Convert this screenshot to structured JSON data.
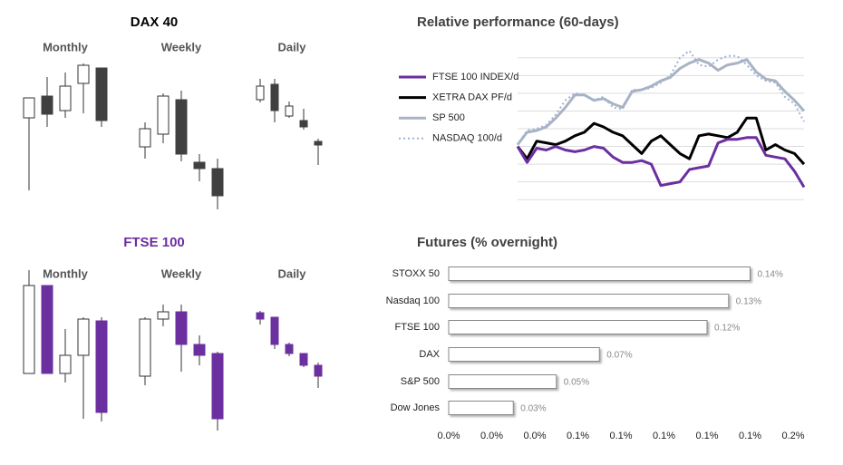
{
  "chart_data": [
    {
      "type": "candlestick",
      "title": "DAX 40",
      "color": "#404040",
      "ylim": [
        0,
        200
      ],
      "panels": [
        {
          "title": "Monthly",
          "open": [
            110,
            134,
            118,
            148,
            165
          ],
          "high": [
            132,
            155,
            160,
            170,
            165
          ],
          "low": [
            30,
            100,
            110,
            115,
            100
          ],
          "close": [
            132,
            114,
            145,
            168,
            107
          ]
        },
        {
          "title": "Weekly",
          "open": [
            78,
            92,
            130,
            61,
            54
          ],
          "high": [
            105,
            137,
            140,
            70,
            65
          ],
          "low": [
            65,
            82,
            62,
            40,
            9
          ],
          "close": [
            98,
            134,
            70,
            54,
            24
          ]
        },
        {
          "title": "Daily",
          "open": [
            130,
            147,
            112,
            107,
            84
          ],
          "high": [
            153,
            153,
            128,
            120,
            87
          ],
          "low": [
            127,
            105,
            110,
            97,
            58
          ],
          "close": [
            145,
            118,
            123,
            100,
            80
          ]
        }
      ]
    },
    {
      "type": "line",
      "title": "Relative performance (60-days)",
      "ylim": [
        -4.5,
        4.5
      ],
      "yticks": [
        -4,
        -3,
        -2,
        -1,
        0,
        1,
        2,
        3,
        4
      ],
      "grid": true,
      "series": [
        {
          "name": "FTSE 100 INDEX/d",
          "color": "#6b2fa0",
          "style": "solid",
          "values": [
            -1.0,
            -1.9,
            -1.1,
            -1.2,
            -1.0,
            -1.2,
            -1.3,
            -1.2,
            -1.0,
            -1.1,
            -1.6,
            -1.9,
            -1.9,
            -1.8,
            -2.0,
            -3.2,
            -3.1,
            -3.0,
            -2.3,
            -2.2,
            -2.1,
            -0.8,
            -0.6,
            -0.6,
            -0.5,
            -0.5,
            -1.5,
            -1.6,
            -1.7,
            -2.4,
            -3.3
          ]
        },
        {
          "name": "XETRA DAX PF/d",
          "color": "#000000",
          "style": "solid",
          "values": [
            -1.0,
            -1.7,
            -0.7,
            -0.8,
            -0.9,
            -0.7,
            -0.4,
            -0.2,
            0.3,
            0.1,
            -0.2,
            -0.4,
            -0.9,
            -1.4,
            -0.7,
            -0.4,
            -0.9,
            -1.4,
            -1.7,
            -0.4,
            -0.3,
            -0.4,
            -0.5,
            -0.2,
            0.6,
            0.6,
            -1.2,
            -0.9,
            -1.2,
            -1.4,
            -2.0
          ]
        },
        {
          "name": "SP 500",
          "color": "#a9b3c4",
          "style": "solid",
          "values": [
            -0.9,
            -0.2,
            -0.1,
            0.1,
            0.6,
            1.2,
            1.9,
            1.9,
            1.6,
            1.7,
            1.4,
            1.2,
            2.1,
            2.2,
            2.4,
            2.7,
            2.9,
            3.4,
            3.7,
            3.9,
            3.7,
            3.3,
            3.6,
            3.7,
            3.9,
            3.2,
            2.8,
            2.7,
            2.1,
            1.6,
            1.0
          ]
        },
        {
          "name": "NASDAQ 100/d",
          "color": "#9db3d6",
          "style": "dotted",
          "values": [
            -0.9,
            -0.1,
            0.0,
            0.2,
            0.8,
            1.6,
            2.0,
            1.9,
            1.6,
            1.8,
            1.2,
            1.1,
            2.2,
            2.2,
            2.3,
            2.6,
            3.0,
            4.0,
            4.4,
            3.6,
            3.5,
            3.9,
            4.1,
            4.1,
            3.6,
            3.0,
            2.7,
            2.6,
            1.8,
            1.4,
            0.4
          ]
        }
      ]
    },
    {
      "type": "candlestick",
      "title": "FTSE 100",
      "color": "#6b2fa0",
      "ylim": [
        0,
        190
      ],
      "panels": [
        {
          "title": "Monthly",
          "open": [
            68,
            165,
            68,
            88,
            126
          ],
          "high": [
            182,
            165,
            117,
            130,
            130
          ],
          "low": [
            68,
            68,
            58,
            18,
            15
          ],
          "close": [
            165,
            68,
            88,
            128,
            25
          ]
        },
        {
          "title": "Weekly",
          "open": [
            65,
            128,
            136,
            100,
            90
          ],
          "high": [
            130,
            144,
            144,
            110,
            92
          ],
          "low": [
            55,
            120,
            70,
            77,
            5
          ],
          "close": [
            128,
            136,
            100,
            88,
            18
          ]
        },
        {
          "title": "Daily",
          "open": [
            135,
            130,
            100,
            90,
            77
          ],
          "high": [
            137,
            130,
            102,
            90,
            80
          ],
          "low": [
            122,
            95,
            87,
            75,
            52
          ],
          "close": [
            128,
            100,
            90,
            77,
            65
          ]
        }
      ]
    },
    {
      "type": "bar",
      "title": "Futures (% overnight)",
      "orientation": "horizontal",
      "categories": [
        "STOXX 50",
        "Nasdaq 100",
        "FTSE 100",
        "DAX",
        "S&P 500",
        "Dow Jones"
      ],
      "values": [
        0.14,
        0.13,
        0.12,
        0.07,
        0.05,
        0.03
      ],
      "value_labels": [
        "0.14%",
        "0.13%",
        "0.12%",
        "0.07%",
        "0.05%",
        "0.03%"
      ],
      "xlim": [
        0,
        0.16
      ],
      "xticks": [
        {
          "value": 0,
          "label": "0.0%"
        },
        {
          "value": 0.02,
          "label": "0.0%"
        },
        {
          "value": 0.04,
          "label": "0.0%"
        },
        {
          "value": 0.06,
          "label": "0.1%"
        },
        {
          "value": 0.08,
          "label": "0.1%"
        },
        {
          "value": 0.1,
          "label": "0.1%"
        },
        {
          "value": 0.12,
          "label": "0.1%"
        },
        {
          "value": 0.14,
          "label": "0.1%"
        },
        {
          "value": 0.16,
          "label": "0.2%"
        }
      ]
    }
  ]
}
